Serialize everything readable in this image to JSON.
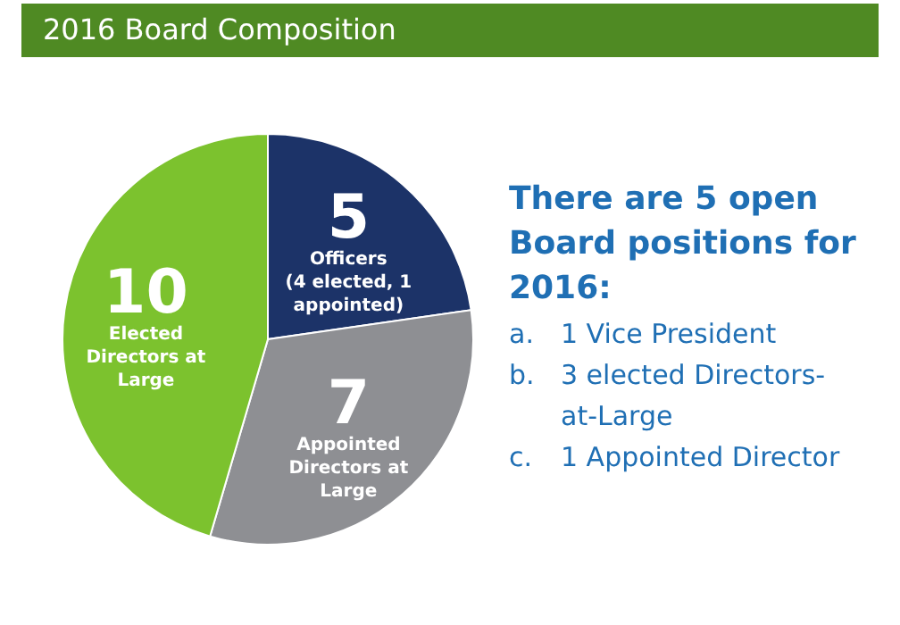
{
  "chart_data": {
    "type": "pie",
    "title": "2016 Board Composition",
    "categories": [
      "Officers\n(4 elected, 1\nappointed)",
      "Appointed\nDirectors at\nLarge",
      "Elected\nDirectors at\nLarge"
    ],
    "values": [
      5,
      7,
      10
    ],
    "colors": [
      "#1c3368",
      "#8e8f93",
      "#7cc22e"
    ],
    "data_labels": true,
    "annotations": [
      "There are 5 open Board positions for 2016:",
      "a. 1 Vice President",
      "b. 3 elected Directors-at-Large",
      "c. 1 Appointed Director"
    ]
  }
}
